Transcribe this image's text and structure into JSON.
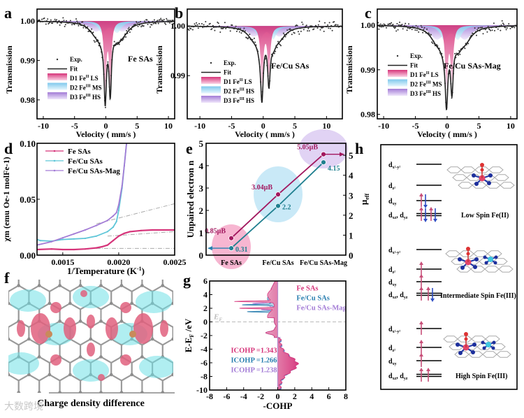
{
  "colors": {
    "pink": "#d6347a",
    "pink_light": "#f3a6c8",
    "blue": "#2a7fb0",
    "cyan": "#5fc6d8",
    "blue_light": "#a9dcf0",
    "purple": "#a37cd6",
    "purple_light": "#d9c4f2",
    "magenta": "#a2185f",
    "teal": "#1f7f8f",
    "gray": "#999999"
  },
  "chart_data": [
    {
      "panel": "a",
      "type": "scatter",
      "title": "Fe SAs",
      "xlabel": "Velocity ( mm/s )",
      "ylabel": "Transmission",
      "xlim": [
        -11,
        11
      ],
      "ylim": [
        0.9752,
        1.003
      ],
      "xticks": [
        -10,
        -5,
        0,
        5,
        10
      ],
      "yticks": [
        0.98,
        0.99,
        1.0
      ],
      "legend": [
        {
          "label": "Exp.",
          "kind": "dot"
        },
        {
          "label": "Fit",
          "kind": "line"
        },
        {
          "label": "D1 Fe",
          "sup": "II",
          "suffix": " LS",
          "kind": "D1"
        },
        {
          "label": "D2 Fe",
          "sup": "III",
          "suffix": " MS",
          "kind": "D2"
        },
        {
          "label": "D3 Fe",
          "sup": "III",
          "suffix": " HS",
          "kind": "D3"
        }
      ],
      "components": {
        "D1": [
          [
            -0.1,
            0.45,
            0.0165
          ],
          [
            0.7,
            0.45,
            0.0155
          ]
        ],
        "D2": [
          [
            -0.6,
            1.6,
            0.0028
          ],
          [
            1.8,
            1.6,
            0.0028
          ]
        ],
        "D3": [
          [
            -1.6,
            2.6,
            0.0025
          ],
          [
            2.7,
            2.6,
            0.0025
          ]
        ]
      }
    },
    {
      "panel": "b",
      "type": "scatter",
      "title": "Fe/Cu SAs",
      "xlabel": "Velocity ( mm/s )",
      "ylabel": "Transmission",
      "xlim": [
        -12,
        12.5
      ],
      "ylim": [
        0.9813,
        1.0034
      ],
      "xticks": [
        -10,
        -5,
        0,
        5,
        10
      ],
      "yticks": [
        0.99,
        1.0
      ],
      "legend": [
        {
          "label": "Exp.",
          "kind": "dot"
        },
        {
          "label": "Fit",
          "kind": "line"
        },
        {
          "label": "D1 Fe",
          "sup": "II",
          "suffix": " LS",
          "kind": "D1"
        },
        {
          "label": "D2 Fe",
          "sup": "III",
          "suffix": " HS",
          "kind": "D2"
        },
        {
          "label": "D3 Fe",
          "sup": "III",
          "suffix": " HS",
          "kind": "D3"
        }
      ],
      "components": {
        "D1": [
          [
            -0.2,
            0.5,
            0.0115
          ],
          [
            0.9,
            0.5,
            0.0095
          ]
        ],
        "D2": [
          [
            -0.5,
            1.2,
            0.0025
          ],
          [
            1.6,
            1.2,
            0.0025
          ]
        ],
        "D3": [
          [
            -1.5,
            2.4,
            0.002
          ],
          [
            2.6,
            2.4,
            0.002
          ]
        ]
      }
    },
    {
      "panel": "c",
      "type": "scatter",
      "title": "Fe/Cu SAs-Mag",
      "xlabel": "Velocity ( mm/s )",
      "ylabel": "Transmission",
      "xlim": [
        -11,
        11
      ],
      "ylim": [
        0.979,
        1.0036
      ],
      "xticks": [
        -10,
        -5,
        0,
        5,
        10
      ],
      "yticks": [
        0.98,
        0.99,
        1.0
      ],
      "legend": [
        {
          "label": "Exp.",
          "kind": "dot"
        },
        {
          "label": "Fit",
          "kind": "line"
        },
        {
          "label": "D1 Fe",
          "sup": "II",
          "suffix": " LS",
          "kind": "D1"
        },
        {
          "label": "D2 Fe",
          "sup": "III",
          "suffix": " MS",
          "kind": "D2"
        },
        {
          "label": "D3 Fe",
          "sup": "III",
          "suffix": " HS",
          "kind": "D3"
        }
      ],
      "components": {
        "D1": [
          [
            -0.1,
            0.5,
            0.0135
          ],
          [
            0.75,
            0.5,
            0.0115
          ]
        ],
        "D2": [
          [
            -0.5,
            1.5,
            0.003
          ],
          [
            1.7,
            1.5,
            0.003
          ]
        ],
        "D3": [
          [
            -1.6,
            2.6,
            0.003
          ],
          [
            2.8,
            2.6,
            0.003
          ]
        ]
      }
    },
    {
      "panel": "d",
      "type": "line",
      "xlabel": "1/Temperature (K",
      "xlabel_sup": "-1",
      "xlabel_end": ")",
      "ylabel": "χm (emu Oe-1 molFe-1)",
      "xlim": [
        0.00127,
        0.0025
      ],
      "ylim": [
        0,
        0.1
      ],
      "xticks": [
        0.0015,
        0.002,
        0.0025
      ],
      "ytick_labels": [
        "0.00",
        "0.05",
        "0.10"
      ],
      "yticks": [
        0,
        0.05,
        0.1
      ],
      "series": [
        {
          "name": "Fe SAs",
          "color": "pink",
          "x": [
            0.00127,
            0.0014,
            0.0015,
            0.0016,
            0.0017,
            0.0018,
            0.00185,
            0.0019,
            0.00195,
            0.002,
            0.00205,
            0.0021,
            0.0022,
            0.0023,
            0.0024,
            0.0025
          ],
          "y": [
            0.005,
            0.0055,
            0.005,
            0.005,
            0.0055,
            0.0065,
            0.0075,
            0.009,
            0.013,
            0.017,
            0.0195,
            0.021,
            0.022,
            0.0225,
            0.0225,
            0.0225
          ]
        },
        {
          "name": "Fe/Cu SAs",
          "color": "cyan",
          "x": [
            0.00127,
            0.0013,
            0.0014,
            0.0015,
            0.0016,
            0.0017,
            0.0018,
            0.0019,
            0.00195,
            0.00198,
            0.002,
            0.00203,
            0.00205,
            0.00207
          ],
          "y": [
            0.014,
            0.013,
            0.0125,
            0.014,
            0.0145,
            0.015,
            0.017,
            0.021,
            0.025,
            0.03,
            0.04,
            0.06,
            0.08,
            0.1
          ]
        },
        {
          "name": "Fe/Cu SAs-Mag",
          "color": "purple",
          "x": [
            0.00127,
            0.0014,
            0.0015,
            0.0016,
            0.0017,
            0.0018,
            0.0019,
            0.00195,
            0.00198,
            0.002,
            0.00203,
            0.00205,
            0.00207
          ],
          "y": [
            0.009,
            0.012,
            0.0155,
            0.019,
            0.0225,
            0.0265,
            0.031,
            0.035,
            0.038,
            0.045,
            0.062,
            0.08,
            0.1
          ]
        }
      ],
      "guides": [
        [
          [
            0.0018,
            0.028
          ],
          [
            0.0025,
            0.046
          ]
        ],
        [
          [
            0.0019,
            0.017
          ],
          [
            0.0025,
            0.021
          ]
        ],
        [
          [
            0.0018,
            0.006
          ],
          [
            0.0025,
            0.006
          ]
        ]
      ]
    },
    {
      "panel": "e",
      "type": "line",
      "categories": [
        "Fe SAs",
        "Fe/Cu SAs",
        "Fe/Cu SAs-Mag"
      ],
      "ylabel": "Unpaired electron n",
      "y2label": "μ",
      "y2label_sub": "eff",
      "ylim": [
        0,
        5
      ],
      "y2lim": [
        0,
        5.6
      ],
      "yticks": [
        0,
        1,
        2,
        3,
        4,
        5
      ],
      "y2ticks": [
        0,
        1,
        2,
        3,
        4,
        5
      ],
      "series": [
        {
          "name": "μeff",
          "axis": "right",
          "color": "magenta",
          "values": [
            0.85,
            3.04,
            5.05
          ],
          "labels": [
            "0.85μB",
            "3.04μB",
            "5.05μB"
          ]
        },
        {
          "name": "n",
          "axis": "left",
          "color": "teal",
          "values": [
            0.31,
            2.2,
            4.15
          ],
          "labels": [
            "0.31",
            "2.2",
            "4.15"
          ]
        }
      ]
    },
    {
      "panel": "g",
      "type": "line",
      "xlabel": "-COHP",
      "ylabel": "E-E",
      "ylabel_sub": "F",
      "ylabel_end": " /eV",
      "xlim": [
        -8,
        8
      ],
      "ylim": [
        -10,
        6
      ],
      "xticks": [
        -8,
        -6,
        -4,
        -2,
        0,
        2,
        4,
        6,
        8
      ],
      "yticks": [
        -10,
        -8,
        -6,
        -4,
        -2,
        0,
        2,
        4,
        6
      ],
      "fermi_label": "E",
      "fermi_sub": "F",
      "series": [
        {
          "name": "Fe SAs",
          "color": "pink",
          "icohp": "ICOHP =1.343",
          "spikes": [
            [
              3.0,
              -5.2
            ],
            [
              2.0,
              -4.8
            ]
          ],
          "bonding_peak": 2.05
        },
        {
          "name": "Fe/Cu SAs",
          "color": "blue",
          "icohp": "ICOHP =1.266",
          "spikes": [
            [
              2.5,
              -4.3
            ],
            [
              1.5,
              -3.9
            ]
          ],
          "bonding_peak": 1.9
        },
        {
          "name": "Fe/Cu SAs-Mag",
          "color": "purple",
          "icohp": "ICOHP =1.238",
          "spikes": [
            [
              2.7,
              -2.6
            ],
            [
              1.8,
              -2.2
            ]
          ],
          "bonding_peak": 1.8
        }
      ]
    }
  ],
  "panel_letters": [
    "a",
    "b",
    "c",
    "d",
    "e",
    "f",
    "g",
    "h"
  ],
  "panel_f": {
    "caption": "Charge density difference"
  },
  "panel_h": {
    "states": [
      {
        "caption": "Low Spin Fe(II)",
        "orbitals": [
          {
            "sub": "x²-y²",
            "e": [
              ""
            ]
          },
          {
            "sub": "z²",
            "e": [
              ""
            ]
          },
          {
            "sub": "xy",
            "e": [
              "ud"
            ]
          },
          {
            "sub": "xz",
            "sub2": "yz",
            "e": [
              "ud",
              "ud"
            ]
          }
        ]
      },
      {
        "caption": "Intermediate Spin Fe(III)",
        "orbitals": [
          {
            "sub": "x²-y²",
            "e": [
              ""
            ]
          },
          {
            "sub": "z²",
            "e": [
              "u"
            ]
          },
          {
            "sub": "xy",
            "e": [
              "u"
            ]
          },
          {
            "sub": "xz",
            "sub2": "yz",
            "e": [
              "u",
              "ud"
            ]
          }
        ]
      },
      {
        "caption": "High Spin Fe(III)",
        "orbitals": [
          {
            "sub": "x²-y²",
            "e": [
              "u"
            ]
          },
          {
            "sub": "z²",
            "e": [
              "u"
            ]
          },
          {
            "sub": "xy",
            "e": [
              "u"
            ]
          },
          {
            "sub": "xz",
            "sub2": "yz",
            "e": [
              "u",
              "u"
            ]
          }
        ]
      }
    ]
  },
  "watermark": "大数跨境"
}
